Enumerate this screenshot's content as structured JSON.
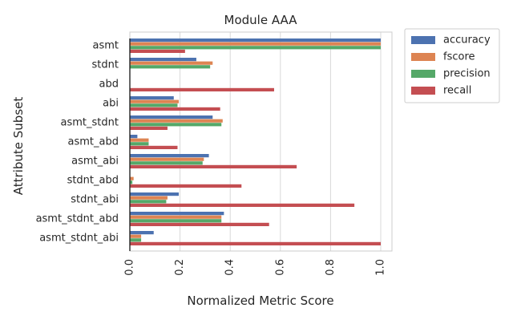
{
  "chart_data": {
    "type": "bar",
    "orientation": "horizontal",
    "title": "Module AAA",
    "xlabel": "Normalized Metric Score",
    "ylabel": "Attribute Subset",
    "xlim": [
      0,
      1.05
    ],
    "xticks": [
      "0.0",
      "0.2",
      "0.4",
      "0.6",
      "0.8",
      "1.0"
    ],
    "grid": "vertical",
    "legend_position": "outside-right",
    "categories": [
      "asmt",
      "stdnt",
      "abd",
      "abi",
      "asmt_stdnt",
      "asmt_abd",
      "asmt_abi",
      "stdnt_abd",
      "stdnt_abi",
      "asmt_stdnt_abd",
      "asmt_stdnt_abi"
    ],
    "series": [
      {
        "name": "accuracy",
        "color": "#4c72b0",
        "values": [
          1.0,
          0.265,
          0.0,
          0.175,
          0.33,
          0.03,
          0.315,
          0.0,
          0.195,
          0.375,
          0.095
        ]
      },
      {
        "name": "fscore",
        "color": "#dd8452",
        "values": [
          1.0,
          0.33,
          0.0,
          0.195,
          0.37,
          0.075,
          0.295,
          0.015,
          0.15,
          0.365,
          0.045
        ]
      },
      {
        "name": "precision",
        "color": "#55a868",
        "values": [
          1.0,
          0.32,
          0.0,
          0.19,
          0.365,
          0.075,
          0.29,
          0.01,
          0.145,
          0.365,
          0.045
        ]
      },
      {
        "name": "recall",
        "color": "#c44e52",
        "values": [
          0.22,
          0.0,
          0.575,
          0.36,
          0.15,
          0.19,
          0.665,
          0.445,
          0.895,
          0.555,
          1.0
        ]
      }
    ]
  }
}
